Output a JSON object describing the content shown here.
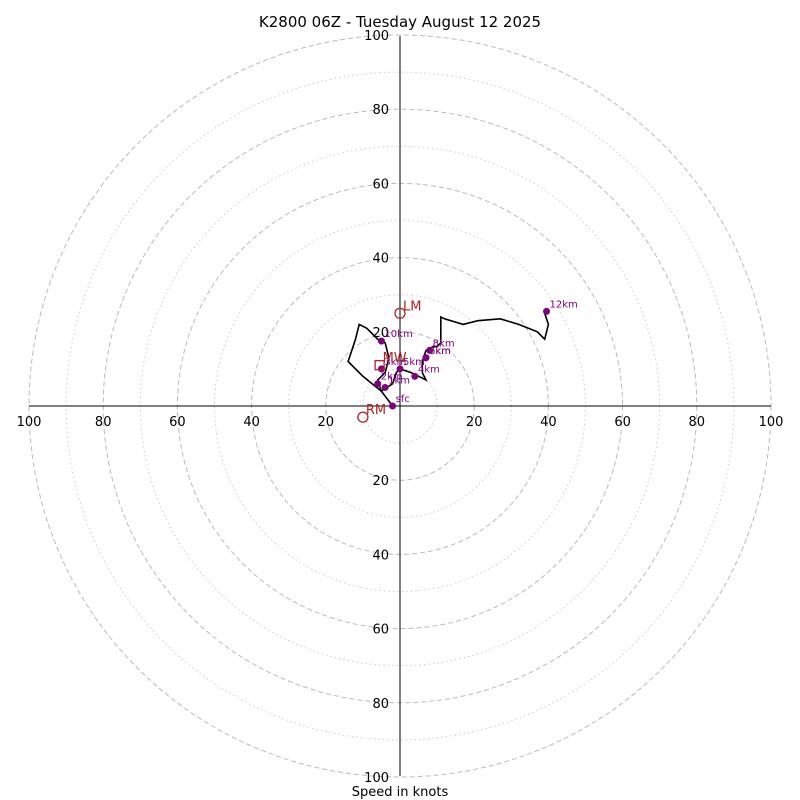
{
  "chart_data": {
    "type": "hodograph",
    "title": "K2800 06Z - Tuesday August 12 2025",
    "xlabel": "Speed in knots",
    "range": [
      -100,
      100
    ],
    "ring_major": [
      20,
      40,
      60,
      80,
      100
    ],
    "ring_minor": [
      10,
      30,
      50,
      70,
      90
    ],
    "ticks": {
      "x_left": [
        "100",
        "80",
        "60",
        "40",
        "20"
      ],
      "x_right": [
        "20",
        "40",
        "60",
        "80",
        "100"
      ],
      "y_top": [
        "100",
        "80",
        "60",
        "40",
        "20"
      ],
      "y_bottom": [
        "20",
        "40",
        "60",
        "80",
        "100"
      ]
    },
    "trace": [
      [
        -2,
        0
      ],
      [
        -5,
        4
      ],
      [
        -10,
        8
      ],
      [
        -13,
        11
      ],
      [
        -14,
        12
      ],
      [
        -13,
        15
      ],
      [
        -12,
        18
      ],
      [
        -11,
        22
      ],
      [
        -9,
        21
      ],
      [
        -6,
        18
      ],
      [
        -4,
        17
      ],
      [
        -3,
        13
      ],
      [
        -4,
        9
      ],
      [
        -6,
        7
      ],
      [
        -5,
        4
      ],
      [
        -2,
        6
      ],
      [
        -1,
        9
      ],
      [
        0,
        10
      ],
      [
        3,
        9
      ],
      [
        5,
        8
      ],
      [
        7,
        7
      ],
      [
        6,
        9
      ],
      [
        6,
        12
      ],
      [
        7,
        15
      ],
      [
        9,
        16
      ],
      [
        10,
        16
      ],
      [
        11,
        17
      ],
      [
        11,
        20
      ],
      [
        11,
        24
      ],
      [
        12,
        23.5
      ],
      [
        17,
        22
      ],
      [
        21,
        23
      ],
      [
        27,
        23.5
      ],
      [
        32,
        22
      ],
      [
        37,
        20
      ],
      [
        39,
        18
      ],
      [
        40,
        22
      ],
      [
        39,
        25
      ]
    ],
    "heights": [
      {
        "label": "sfc",
        "u": -2,
        "v": 0
      },
      {
        "label": "1km",
        "u": -4,
        "v": 5
      },
      {
        "label": "2km",
        "u": -6,
        "v": 6
      },
      {
        "label": "3km",
        "u": -5,
        "v": 10
      },
      {
        "label": "4km",
        "u": 4,
        "v": 8
      },
      {
        "label": "5km",
        "u": 0,
        "v": 10
      },
      {
        "label": "6km",
        "u": 7,
        "v": 13
      },
      {
        "label": "7km",
        "u": 7,
        "v": 13
      },
      {
        "label": "8km",
        "u": 8,
        "v": 15
      },
      {
        "label": "10km",
        "u": -5,
        "v": 17.5
      },
      {
        "label": "12km",
        "u": 39.5,
        "v": 25.5
      }
    ],
    "markers": [
      {
        "label": "LM",
        "shape": "circle",
        "u": 0,
        "v": 25
      },
      {
        "label": "MW",
        "shape": "square",
        "u": -5.5,
        "v": 11
      },
      {
        "label": "RM",
        "shape": "circle",
        "u": -10,
        "v": -3
      }
    ],
    "colors": {
      "grid": "#bbbbbb",
      "trace": "#000000",
      "heights": "#800080",
      "markers": "#b22222"
    }
  }
}
